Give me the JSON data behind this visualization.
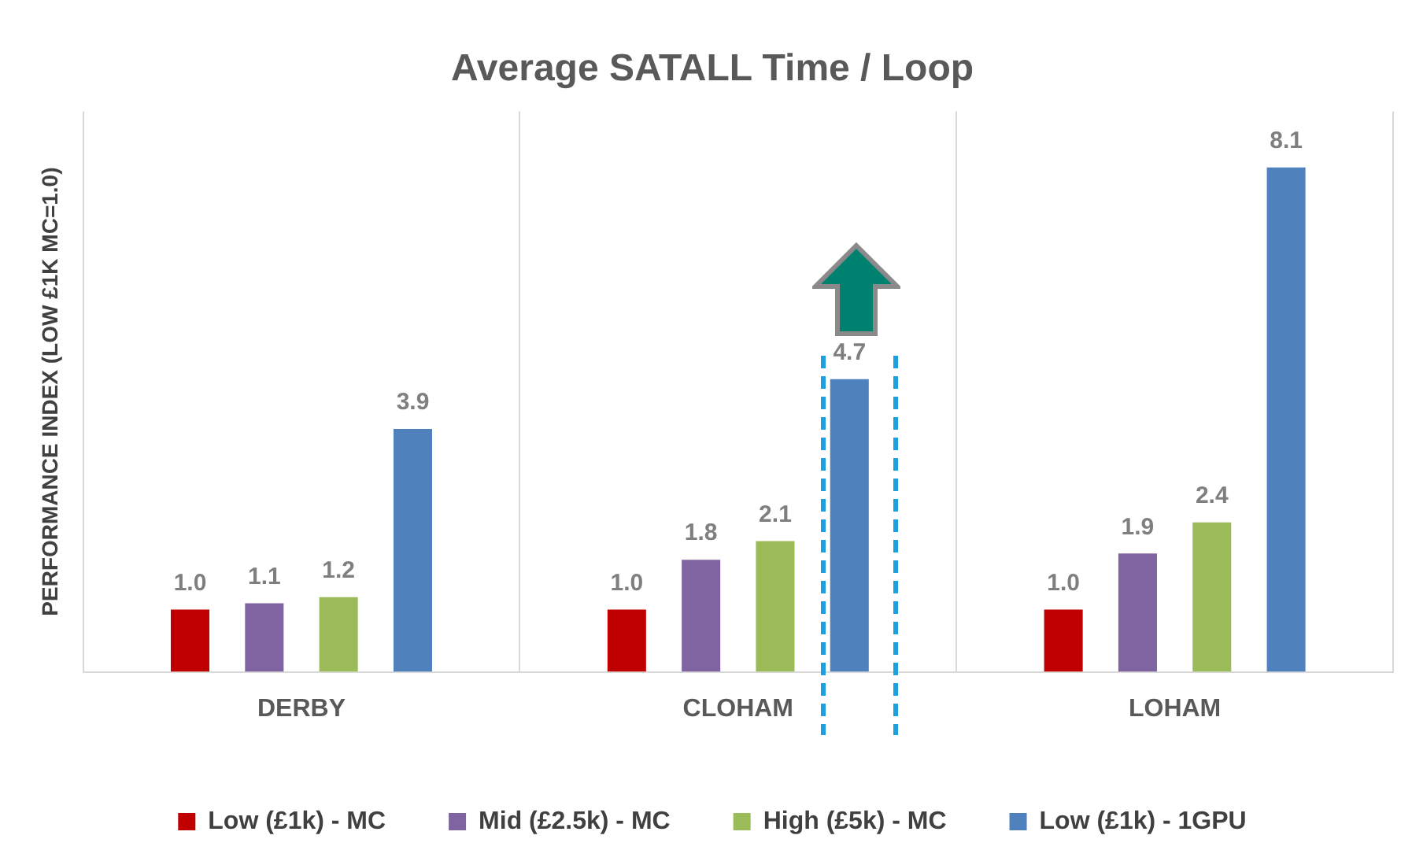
{
  "chart_data": {
    "type": "bar",
    "title": "Average SATALL Time / Loop",
    "ylabel": "PERFORMANCE INDEX (LOW £1K MC=1.0)",
    "categories": [
      "DERBY",
      "CLOHAM",
      "LOHAM"
    ],
    "series": [
      {
        "name": "Low (£1k) - MC",
        "color": "#c00000",
        "values": [
          1.0,
          1.0,
          1.0
        ],
        "value_labels": [
          "1.0",
          "1.0",
          "1.0"
        ]
      },
      {
        "name": "Mid (£2.5k) - MC",
        "color": "#8064a2",
        "values": [
          1.1,
          1.8,
          1.9
        ],
        "value_labels": [
          "1.1",
          "1.8",
          "1.9"
        ]
      },
      {
        "name": "High (£5k) - MC",
        "color": "#9bbb59",
        "values": [
          1.2,
          2.1,
          2.4
        ],
        "value_labels": [
          "1.2",
          "2.1",
          "2.4"
        ]
      },
      {
        "name": "Low (£1k) - 1GPU",
        "color": "#4f81bd",
        "values": [
          3.9,
          4.7,
          8.1
        ],
        "value_labels": [
          "3.9",
          "4.7",
          "8.1"
        ]
      }
    ],
    "grid": "x",
    "legend": "bottom",
    "tick_labels": "x"
  }
}
